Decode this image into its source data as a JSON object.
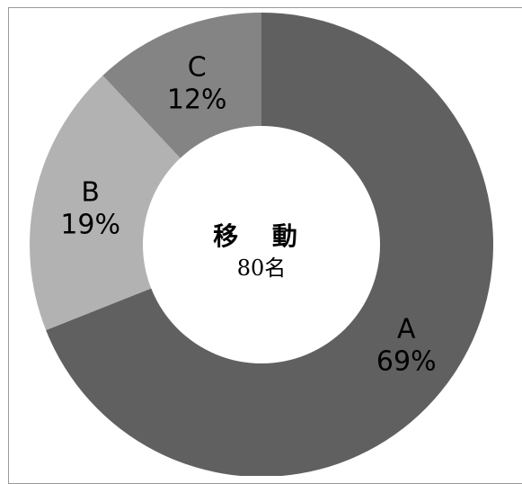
{
  "chart_data": {
    "type": "pie",
    "donut": true,
    "categories": [
      "A",
      "B",
      "C"
    ],
    "values": [
      69,
      19,
      12
    ],
    "value_labels": [
      "69%",
      "19%",
      "12%"
    ],
    "colors": [
      "#606060",
      "#b2b2b2",
      "#848484"
    ],
    "center_title": "移 動",
    "center_count": "80名",
    "legend": "none"
  }
}
